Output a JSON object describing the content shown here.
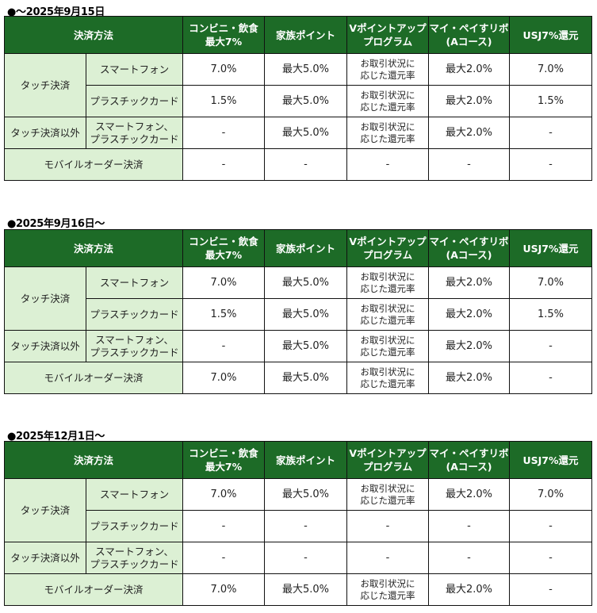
{
  "colors": {
    "header_bg": "#1d6b27",
    "header_text": "#ffffff",
    "label_bg": "#dcf0d4",
    "value_bg": "#ffffff",
    "border": "#111111"
  },
  "header": {
    "method": "決済方法",
    "col1_line1": "コンビニ・飲食",
    "col1_line2": "最大7%",
    "col2": "家族ポイント",
    "col3_line1": "Vポイントアップ",
    "col3_line2": "プログラム",
    "col4_line1": "マイ・ペイすリボ",
    "col4_line2": "(Aコース)",
    "col5": "USJ7%還元"
  },
  "row_labels": {
    "touch": "タッチ決済",
    "smartphone": "スマートフォン",
    "plastic": "プラスチックカード",
    "non_touch": "タッチ決済以外",
    "sp_plastic_line1": "スマートフォン、",
    "sp_plastic_line2": "プラスチックカード",
    "mobile_order": "モバイルオーダー決済"
  },
  "vpoint_text": {
    "line1": "お取引状況に",
    "line2": "応じた還元率"
  },
  "tables": [
    {
      "title": "●～2025年9月15日",
      "rows": {
        "smartphone": [
          "7.0%",
          "最大5.0%",
          "vpoint",
          "最大2.0%",
          "7.0%"
        ],
        "plastic": [
          "1.5%",
          "最大5.0%",
          "vpoint",
          "最大2.0%",
          "1.5%"
        ],
        "non_touch": [
          "-",
          "最大5.0%",
          "vpoint",
          "最大2.0%",
          "-"
        ],
        "mobile_order": [
          "-",
          "-",
          "-",
          "-",
          "-"
        ]
      }
    },
    {
      "title": "●2025年9月16日～",
      "rows": {
        "smartphone": [
          "7.0%",
          "最大5.0%",
          "vpoint",
          "最大2.0%",
          "7.0%"
        ],
        "plastic": [
          "1.5%",
          "最大5.0%",
          "vpoint",
          "最大2.0%",
          "1.5%"
        ],
        "non_touch": [
          "-",
          "最大5.0%",
          "vpoint",
          "最大2.0%",
          "-"
        ],
        "mobile_order": [
          "7.0%",
          "最大5.0%",
          "vpoint",
          "最大2.0%",
          "-"
        ]
      }
    },
    {
      "title": "●2025年12月1日～",
      "rows": {
        "smartphone": [
          "7.0%",
          "最大5.0%",
          "vpoint",
          "最大2.0%",
          "7.0%"
        ],
        "plastic": [
          "-",
          "-",
          "-",
          "-",
          "-"
        ],
        "non_touch": [
          "-",
          "-",
          "-",
          "-",
          "-"
        ],
        "mobile_order": [
          "7.0%",
          "最大5.0%",
          "vpoint",
          "最大2.0%",
          "-"
        ]
      }
    }
  ]
}
